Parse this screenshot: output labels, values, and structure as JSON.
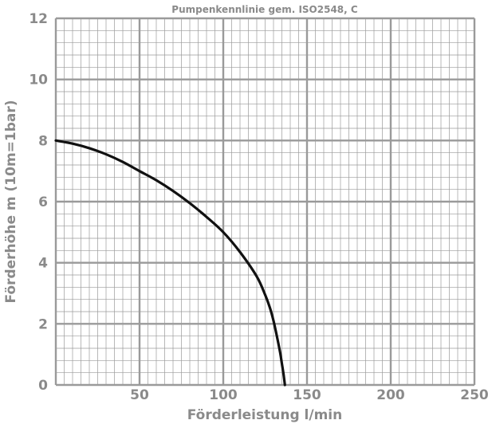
{
  "chart_data": {
    "type": "line",
    "title": "Pumpenkennlinie gem. ISO2548, C",
    "xlabel": "Förderleistung l/min",
    "ylabel": "Förderhöhe m (10m=1bar)",
    "xlim": [
      0,
      250
    ],
    "ylim": [
      0,
      12
    ],
    "x_ticks": [
      50,
      100,
      150,
      200,
      250
    ],
    "y_ticks": [
      0,
      2,
      4,
      6,
      8,
      10,
      12
    ],
    "grid": true,
    "minor_grid": {
      "x_step": 5,
      "y_step": 0.4
    },
    "major_grid": {
      "x_step": 50,
      "y_step": 2
    },
    "colors": {
      "grid": "#9a9a9a",
      "curve": "#111111",
      "text": "#8a8a8a"
    },
    "series": [
      {
        "x": [
          0,
          10,
          20,
          30,
          40,
          50,
          60,
          70,
          80,
          90,
          100,
          110,
          120,
          125,
          128,
          130,
          132,
          134,
          135,
          136,
          136.8
        ],
        "y": [
          8.0,
          7.9,
          7.75,
          7.55,
          7.3,
          7.0,
          6.7,
          6.35,
          5.95,
          5.5,
          5.0,
          4.35,
          3.55,
          2.95,
          2.5,
          2.1,
          1.6,
          1.05,
          0.7,
          0.35,
          0
        ]
      }
    ]
  }
}
